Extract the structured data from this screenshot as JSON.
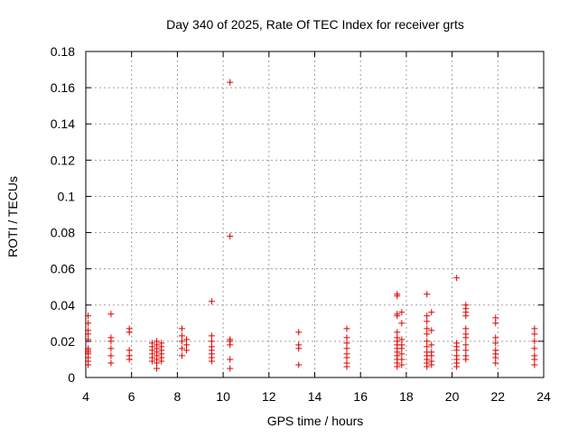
{
  "chart_data": {
    "type": "scatter",
    "title": "Day 340 of 2025, Rate Of TEC Index for receiver grts",
    "xlabel": "GPS time / hours",
    "ylabel": "ROTI / TECUs",
    "xlim": [
      4,
      24
    ],
    "ylim": [
      0,
      0.18
    ],
    "x_ticks": [
      4,
      6,
      8,
      10,
      12,
      14,
      16,
      18,
      20,
      22,
      24
    ],
    "x_tick_labels": [
      "4",
      "6",
      "8",
      "10",
      "12",
      "14",
      "16",
      "18",
      "20",
      "22",
      "24"
    ],
    "y_ticks": [
      0,
      0.02,
      0.04,
      0.06,
      0.08,
      0.1,
      0.12,
      0.14,
      0.16,
      0.18
    ],
    "y_tick_labels": [
      "0",
      "0.02",
      "0.04",
      "0.06",
      "0.08",
      "0.1",
      "0.12",
      "0.14",
      "0.16",
      "0.18"
    ],
    "grid": true,
    "marker": "plus",
    "color": "#e00000",
    "points": [
      [
        4.1,
        0.034
      ],
      [
        4.1,
        0.03
      ],
      [
        4.1,
        0.026
      ],
      [
        4.1,
        0.024
      ],
      [
        4.1,
        0.021
      ],
      [
        4.1,
        0.016
      ],
      [
        4.1,
        0.015
      ],
      [
        4.1,
        0.014
      ],
      [
        4.1,
        0.013
      ],
      [
        4.1,
        0.011
      ],
      [
        4.1,
        0.009
      ],
      [
        4.1,
        0.007
      ],
      [
        5.1,
        0.035
      ],
      [
        5.1,
        0.022
      ],
      [
        5.1,
        0.02
      ],
      [
        5.1,
        0.016
      ],
      [
        5.1,
        0.012
      ],
      [
        5.1,
        0.008
      ],
      [
        5.9,
        0.027
      ],
      [
        5.9,
        0.025
      ],
      [
        5.9,
        0.015
      ],
      [
        5.9,
        0.012
      ],
      [
        5.9,
        0.01
      ],
      [
        6.9,
        0.019
      ],
      [
        6.9,
        0.017
      ],
      [
        6.9,
        0.015
      ],
      [
        6.9,
        0.013
      ],
      [
        6.9,
        0.011
      ],
      [
        6.9,
        0.009
      ],
      [
        7.1,
        0.02
      ],
      [
        7.1,
        0.018
      ],
      [
        7.1,
        0.016
      ],
      [
        7.1,
        0.014
      ],
      [
        7.1,
        0.012
      ],
      [
        7.1,
        0.01
      ],
      [
        7.1,
        0.008
      ],
      [
        7.1,
        0.005
      ],
      [
        7.3,
        0.019
      ],
      [
        7.3,
        0.017
      ],
      [
        7.3,
        0.015
      ],
      [
        7.3,
        0.013
      ],
      [
        7.3,
        0.011
      ],
      [
        7.3,
        0.009
      ],
      [
        8.2,
        0.027
      ],
      [
        8.2,
        0.023
      ],
      [
        8.2,
        0.02
      ],
      [
        8.2,
        0.016
      ],
      [
        8.2,
        0.012
      ],
      [
        8.4,
        0.021
      ],
      [
        8.4,
        0.018
      ],
      [
        8.4,
        0.015
      ],
      [
        9.5,
        0.042
      ],
      [
        9.5,
        0.023
      ],
      [
        9.5,
        0.02
      ],
      [
        9.5,
        0.017
      ],
      [
        9.5,
        0.015
      ],
      [
        9.5,
        0.013
      ],
      [
        9.5,
        0.011
      ],
      [
        9.5,
        0.009
      ],
      [
        10.3,
        0.163
      ],
      [
        10.3,
        0.078
      ],
      [
        10.3,
        0.021
      ],
      [
        10.3,
        0.02
      ],
      [
        10.3,
        0.018
      ],
      [
        10.3,
        0.01
      ],
      [
        10.3,
        0.005
      ],
      [
        13.3,
        0.025
      ],
      [
        13.3,
        0.018
      ],
      [
        13.3,
        0.016
      ],
      [
        13.3,
        0.007
      ],
      [
        15.4,
        0.027
      ],
      [
        15.4,
        0.022
      ],
      [
        15.4,
        0.019
      ],
      [
        15.4,
        0.016
      ],
      [
        15.4,
        0.013
      ],
      [
        15.4,
        0.011
      ],
      [
        15.4,
        0.008
      ],
      [
        15.4,
        0.006
      ],
      [
        17.6,
        0.046
      ],
      [
        17.6,
        0.045
      ],
      [
        17.6,
        0.035
      ],
      [
        17.6,
        0.034
      ],
      [
        17.6,
        0.025
      ],
      [
        17.6,
        0.022
      ],
      [
        17.6,
        0.02
      ],
      [
        17.6,
        0.018
      ],
      [
        17.6,
        0.016
      ],
      [
        17.6,
        0.014
      ],
      [
        17.6,
        0.012
      ],
      [
        17.6,
        0.01
      ],
      [
        17.6,
        0.008
      ],
      [
        17.6,
        0.006
      ],
      [
        17.8,
        0.036
      ],
      [
        17.8,
        0.03
      ],
      [
        17.8,
        0.021
      ],
      [
        17.8,
        0.018
      ],
      [
        17.8,
        0.016
      ],
      [
        17.8,
        0.013
      ],
      [
        17.8,
        0.01
      ],
      [
        17.8,
        0.007
      ],
      [
        18.9,
        0.046
      ],
      [
        18.9,
        0.034
      ],
      [
        18.9,
        0.031
      ],
      [
        18.9,
        0.027
      ],
      [
        18.9,
        0.024
      ],
      [
        18.9,
        0.02
      ],
      [
        18.9,
        0.017
      ],
      [
        18.9,
        0.014
      ],
      [
        18.9,
        0.012
      ],
      [
        18.9,
        0.01
      ],
      [
        18.9,
        0.008
      ],
      [
        18.9,
        0.006
      ],
      [
        19.1,
        0.036
      ],
      [
        19.1,
        0.026
      ],
      [
        19.1,
        0.018
      ],
      [
        19.1,
        0.014
      ],
      [
        19.1,
        0.012
      ],
      [
        19.1,
        0.009
      ],
      [
        19.1,
        0.007
      ],
      [
        20.2,
        0.055
      ],
      [
        20.2,
        0.019
      ],
      [
        20.2,
        0.017
      ],
      [
        20.2,
        0.015
      ],
      [
        20.2,
        0.012
      ],
      [
        20.2,
        0.01
      ],
      [
        20.2,
        0.008
      ],
      [
        20.2,
        0.006
      ],
      [
        20.6,
        0.04
      ],
      [
        20.6,
        0.038
      ],
      [
        20.6,
        0.036
      ],
      [
        20.6,
        0.034
      ],
      [
        20.6,
        0.027
      ],
      [
        20.6,
        0.024
      ],
      [
        20.6,
        0.022
      ],
      [
        20.6,
        0.018
      ],
      [
        20.6,
        0.015
      ],
      [
        20.6,
        0.012
      ],
      [
        20.6,
        0.01
      ],
      [
        21.9,
        0.033
      ],
      [
        21.9,
        0.03
      ],
      [
        21.9,
        0.022
      ],
      [
        21.9,
        0.019
      ],
      [
        21.9,
        0.015
      ],
      [
        21.9,
        0.013
      ],
      [
        21.9,
        0.011
      ],
      [
        21.9,
        0.008
      ],
      [
        23.6,
        0.027
      ],
      [
        23.6,
        0.024
      ],
      [
        23.6,
        0.02
      ],
      [
        23.6,
        0.016
      ],
      [
        23.6,
        0.012
      ],
      [
        23.6,
        0.01
      ],
      [
        23.6,
        0.007
      ]
    ]
  }
}
